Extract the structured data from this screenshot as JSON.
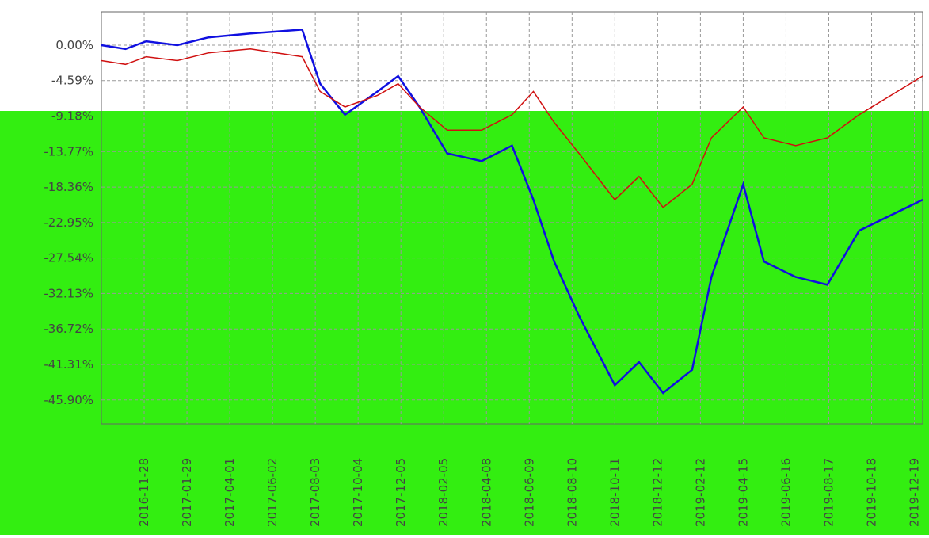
{
  "chart_data": {
    "type": "line",
    "xlim": [
      "2016-09-27",
      "2019-12-31"
    ],
    "ylim": [
      -49,
      4.3
    ],
    "xticks": [
      "2016-11-28",
      "2017-01-29",
      "2017-04-01",
      "2017-06-02",
      "2017-08-03",
      "2017-10-04",
      "2017-12-05",
      "2018-02-05",
      "2018-04-08",
      "2018-06-09",
      "2018-08-10",
      "2018-10-11",
      "2018-12-12",
      "2019-02-12",
      "2019-04-15",
      "2019-06-16",
      "2019-08-17",
      "2019-10-18",
      "2019-12-19"
    ],
    "yticks": [
      {
        "value": 0,
        "label": "0.00%"
      },
      {
        "value": -4.59,
        "label": "-4.59%"
      },
      {
        "value": -9.18,
        "label": "-9.18%"
      },
      {
        "value": -13.77,
        "label": "-13.77%"
      },
      {
        "value": -18.36,
        "label": "-18.36%"
      },
      {
        "value": -22.95,
        "label": "-22.95%"
      },
      {
        "value": -27.54,
        "label": "-27.54%"
      },
      {
        "value": -32.13,
        "label": "-32.13%"
      },
      {
        "value": -36.72,
        "label": "-36.72%"
      },
      {
        "value": -41.31,
        "label": "-41.31%"
      },
      {
        "value": -45.9,
        "label": "-45.90%"
      }
    ],
    "grid": true,
    "x": [
      "2016-09-27",
      "2016-11-01",
      "2016-12-01",
      "2017-01-15",
      "2017-03-01",
      "2017-05-01",
      "2017-07-15",
      "2017-08-10",
      "2017-09-15",
      "2017-11-01",
      "2017-12-01",
      "2018-01-01",
      "2018-02-10",
      "2018-04-01",
      "2018-05-15",
      "2018-06-15",
      "2018-07-15",
      "2018-08-20",
      "2018-10-11",
      "2018-11-15",
      "2018-12-20",
      "2019-01-31",
      "2019-02-28",
      "2019-04-15",
      "2019-05-15",
      "2019-06-30",
      "2019-08-15",
      "2019-09-30",
      "2019-12-31"
    ],
    "series": [
      {
        "color": "#1010e0",
        "values": [
          0,
          -0.5,
          0.5,
          0,
          1,
          1.5,
          2,
          -5,
          -9,
          -6,
          -4,
          -8,
          -14,
          -15,
          -13,
          -20,
          -28,
          -35,
          -44,
          -41,
          -45,
          -42,
          -30,
          -18,
          -28,
          -30,
          -31,
          -24,
          -20
        ]
      },
      {
        "color": "#d01010",
        "values": [
          -2,
          -2.5,
          -1.5,
          -2,
          -1,
          -0.5,
          -1.5,
          -6,
          -8,
          -6.5,
          -5,
          -8,
          -11,
          -11,
          -9,
          -6,
          -10,
          -14,
          -20,
          -17,
          -21,
          -18,
          -12,
          -8,
          -12,
          -13,
          -12,
          -9,
          -4
        ]
      }
    ]
  }
}
